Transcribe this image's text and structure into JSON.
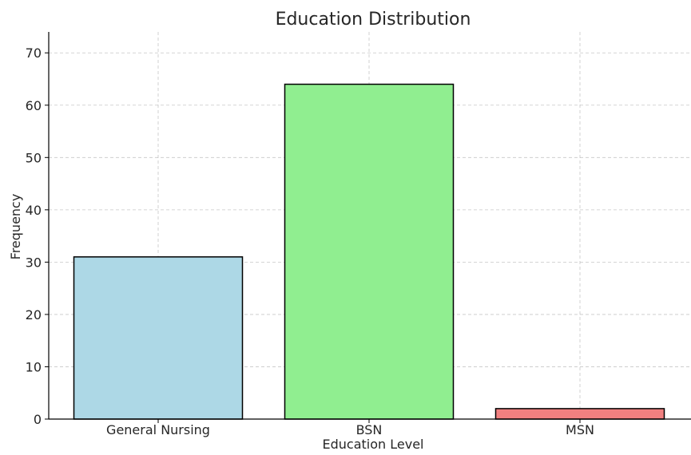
{
  "chart_data": {
    "type": "bar",
    "title": "Education Distribution",
    "xlabel": "Education Level",
    "ylabel": "Frequency",
    "categories": [
      "General Nursing",
      "BSN",
      "MSN"
    ],
    "values": [
      31,
      64,
      2
    ],
    "colors": [
      "#add8e6",
      "#90ee90",
      "#f08080"
    ],
    "edge_color": "#000000",
    "ylim": [
      0,
      74
    ],
    "yticks": [
      0,
      10,
      20,
      30,
      40,
      50,
      60,
      70
    ],
    "grid": true,
    "grid_style": "dashed"
  }
}
